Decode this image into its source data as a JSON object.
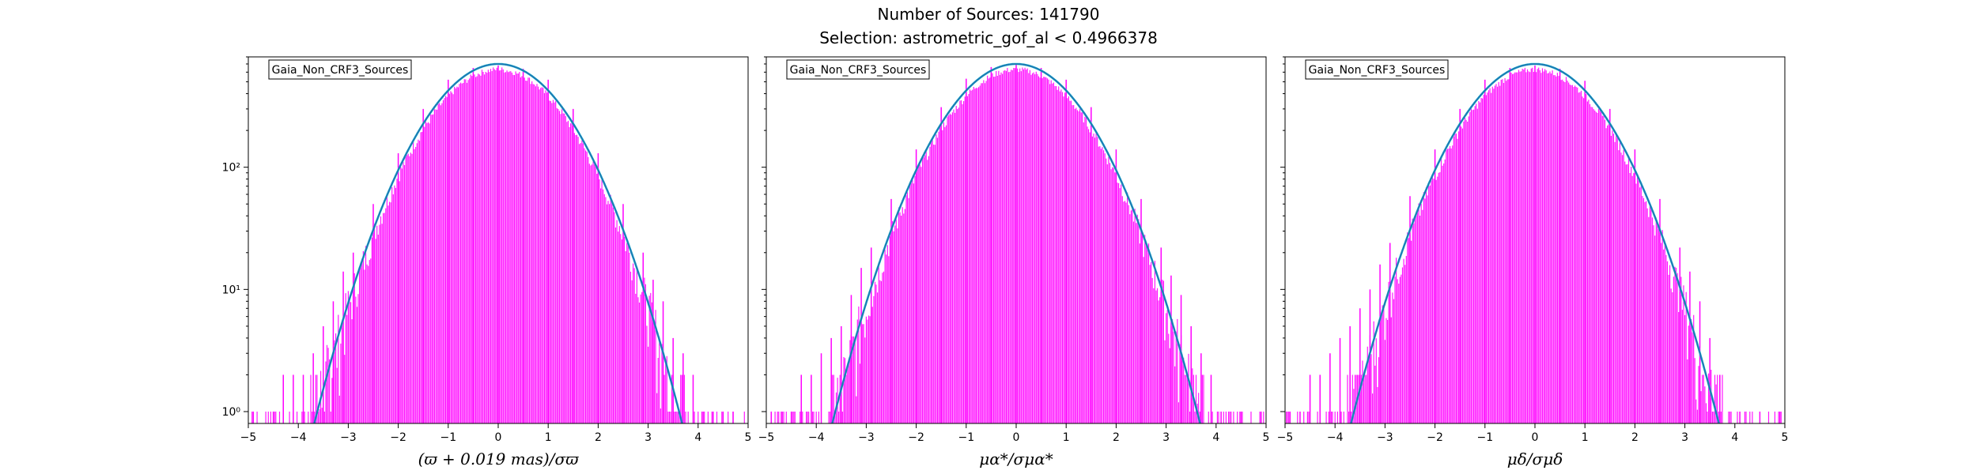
{
  "figure": {
    "title_line1": "Number of Sources: 141790",
    "title_line2": "Selection: astrometric_gof_al < 0.4966378"
  },
  "colors": {
    "histogram": "#ff00ff",
    "model": "#1f77b4",
    "model_secondary": "#17becf",
    "axes": "#000000"
  },
  "chart_data": [
    {
      "type": "line",
      "legend": "Gaia_Non_CRF3_Sources",
      "xlabel": "(ϖ + 0.019 mas)/σϖ",
      "ylabel": "",
      "xlim": [
        -5,
        5
      ],
      "ylim": [
        0.8,
        800
      ],
      "yscale": "log",
      "x_ticks": [
        "−5",
        "−4",
        "−3",
        "−2",
        "−1",
        "0",
        "1",
        "2",
        "3",
        "4",
        "5"
      ],
      "y_ticks": [
        {
          "label": "10⁰",
          "value": 1
        },
        {
          "label": "10¹",
          "value": 10
        },
        {
          "label": "10²",
          "value": 100
        }
      ],
      "model": {
        "name": "",
        "peak": 700,
        "mu": 0,
        "sigma": 1.0
      },
      "histogram_samples": {
        "x": [
          -4.9,
          -4.5,
          -4.3,
          -4.1,
          -3.9,
          -3.7,
          -3.5,
          -3.3,
          -3.1,
          -2.9,
          -2.5,
          -2.0,
          -1.5,
          -1.0,
          -0.5,
          0,
          0.5,
          1.0,
          1.5,
          2.0,
          2.5,
          2.9,
          3.1,
          3.3,
          3.5,
          3.7,
          3.9,
          4.1,
          4.3,
          4.5,
          4.7
        ],
        "y": [
          1,
          1,
          2,
          2,
          2,
          3,
          5,
          8,
          14,
          20,
          50,
          130,
          300,
          520,
          650,
          680,
          640,
          520,
          300,
          130,
          50,
          20,
          12,
          8,
          4,
          3,
          2,
          1,
          1,
          1,
          1
        ]
      },
      "grid": false
    },
    {
      "type": "line",
      "legend": "Gaia_Non_CRF3_Sources",
      "xlabel": "μα*/σμα*",
      "ylabel": "",
      "xlim": [
        -5,
        5
      ],
      "ylim": [
        0.8,
        800
      ],
      "yscale": "log",
      "x_ticks": [
        "−5",
        "−4",
        "−3",
        "−2",
        "−1",
        "0",
        "1",
        "2",
        "3",
        "4",
        "5"
      ],
      "y_ticks": [
        {
          "label": "10⁰",
          "value": 1
        },
        {
          "label": "10¹",
          "value": 10
        },
        {
          "label": "10²",
          "value": 100
        }
      ],
      "model": {
        "name": "",
        "peak": 700,
        "mu": 0,
        "sigma": 1.0
      },
      "histogram_samples": {
        "x": [
          -4.9,
          -4.7,
          -4.5,
          -4.3,
          -4.1,
          -3.9,
          -3.7,
          -3.5,
          -3.3,
          -3.1,
          -2.9,
          -2.5,
          -2.0,
          -1.5,
          -1.0,
          -0.5,
          0,
          0.5,
          1.0,
          1.5,
          2.0,
          2.5,
          2.9,
          3.1,
          3.3,
          3.5,
          3.7,
          3.9,
          4.1,
          4.5,
          4.9
        ],
        "y": [
          1,
          1,
          1,
          2,
          2,
          3,
          4,
          5,
          9,
          15,
          22,
          55,
          140,
          310,
          530,
          660,
          690,
          650,
          520,
          310,
          140,
          55,
          22,
          13,
          9,
          5,
          3,
          2,
          1,
          1,
          1
        ]
      },
      "grid": false
    },
    {
      "type": "line",
      "legend": "Gaia_Non_CRF3_Sources",
      "xlabel": "μδ/σμδ",
      "ylabel": "",
      "xlim": [
        -5,
        5
      ],
      "ylim": [
        0.8,
        800
      ],
      "yscale": "log",
      "x_ticks": [
        "−5",
        "−4",
        "−3",
        "−2",
        "−1",
        "0",
        "1",
        "2",
        "3",
        "4",
        "5"
      ],
      "y_ticks": [
        {
          "label": "10⁰",
          "value": 1
        },
        {
          "label": "10¹",
          "value": 10
        },
        {
          "label": "10²",
          "value": 100
        }
      ],
      "model": {
        "name": "",
        "peak": 700,
        "mu": 0,
        "sigma": 1.0
      },
      "histogram_samples": {
        "x": [
          -4.9,
          -4.7,
          -4.5,
          -4.3,
          -4.1,
          -3.9,
          -3.7,
          -3.5,
          -3.3,
          -3.1,
          -2.9,
          -2.5,
          -2.0,
          -1.5,
          -1.0,
          -0.5,
          0,
          0.5,
          1.0,
          1.5,
          2.0,
          2.5,
          2.9,
          3.1,
          3.3,
          3.5,
          3.7,
          4.1,
          4.5,
          4.9
        ],
        "y": [
          1,
          1,
          2,
          2,
          3,
          4,
          5,
          7,
          10,
          16,
          24,
          58,
          140,
          300,
          520,
          650,
          680,
          640,
          510,
          300,
          140,
          55,
          22,
          14,
          8,
          4,
          2,
          1,
          1,
          1
        ]
      },
      "grid": false
    }
  ]
}
